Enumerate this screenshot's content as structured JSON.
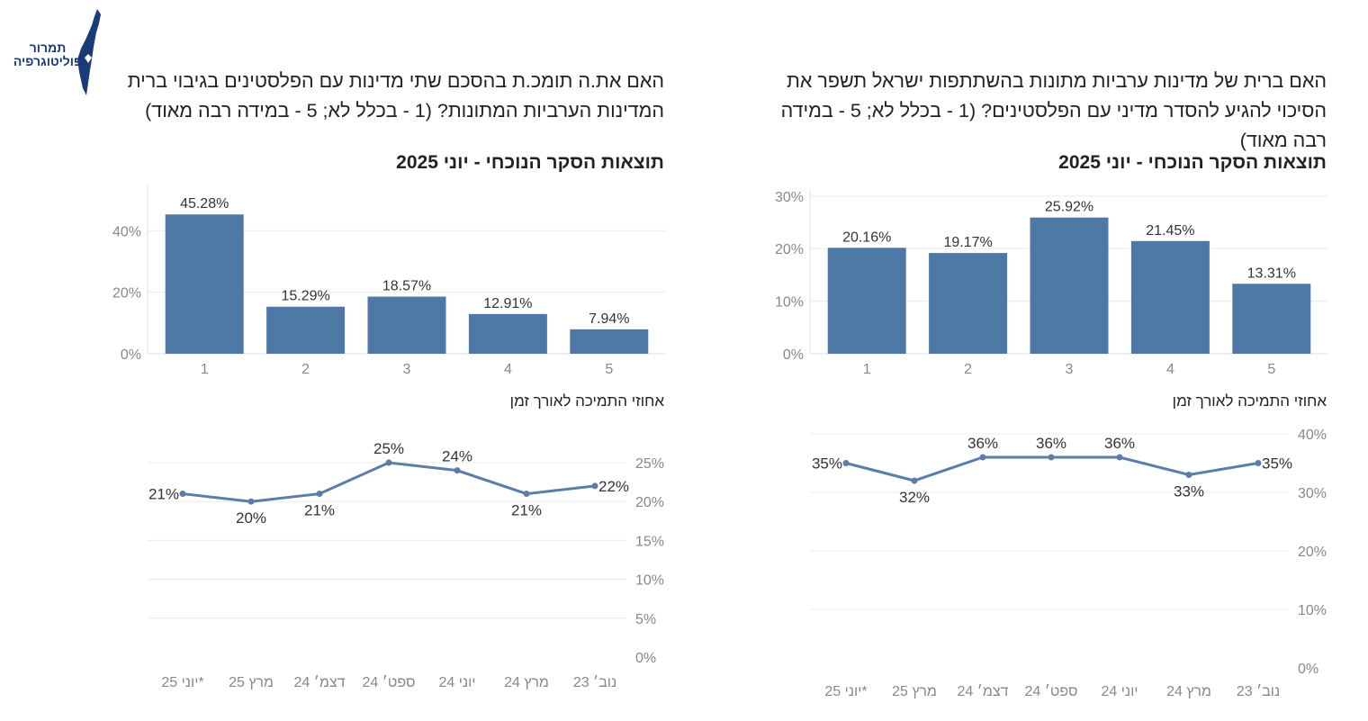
{
  "logo": {
    "line1": "תמרור",
    "line2": "פוליטוגרפיה"
  },
  "colors": {
    "bar": "#4e79a7",
    "line": "#5b7ea6",
    "grid": "#ececec",
    "axis_text": "#888888"
  },
  "panels": [
    {
      "question": "האם ברית של מדינות ערביות מתונות בהשתתפות ישראל תשפר את הסיכוי להגיע להסדר מדיני עם הפלסטינים? (1 - בכלל לא; 5 - במידה רבה מאוד)",
      "subtitle_prefix": "תוצאות הסקר הנוכחי - ",
      "subtitle_bold": "יוני",
      "subtitle_suffix": " 2025",
      "trend_title": "אחוזי התמיכה לאורך זמן"
    },
    {
      "question": "האם את.ה תומכ.ת בהסכם שתי מדינות עם הפלסטינים בגיבוי ברית המדינות הערביות המתונות? (1 - בכלל לא; 5 - במידה רבה מאוד)",
      "subtitle_prefix": "תוצאות הסקר הנוכחי - ",
      "subtitle_bold": "יוני",
      "subtitle_suffix": " 2025",
      "trend_title": "אחוזי התמיכה לאורך זמן"
    }
  ],
  "chart_data": [
    {
      "type": "bar",
      "categories": [
        "1",
        "2",
        "3",
        "4",
        "5"
      ],
      "values": [
        20.16,
        19.17,
        25.92,
        21.45,
        13.31
      ],
      "labels": [
        "20.16%",
        "19.17%",
        "25.92%",
        "21.45%",
        "13.31%"
      ],
      "ylim": [
        0,
        31
      ],
      "yticks": [
        0,
        10,
        20,
        30
      ],
      "ytick_labels": [
        "0%",
        "10%",
        "20%",
        "30%"
      ]
    },
    {
      "type": "line",
      "categories": [
        "*יוני 25",
        "מרץ 25",
        "דצמ׳ 24",
        "ספט׳ 24",
        "יוני 24",
        "מרץ 24",
        "נוב׳ 23"
      ],
      "values": [
        35,
        32,
        36,
        36,
        36,
        33,
        35
      ],
      "labels": [
        "35%",
        "32%",
        "36%",
        "36%",
        "36%",
        "33%",
        "35%"
      ],
      "label_pos": [
        "left",
        "below",
        "above",
        "above",
        "above",
        "below",
        "right"
      ],
      "ylim": [
        0,
        40
      ],
      "yticks": [
        0,
        10,
        20,
        30,
        40
      ],
      "ytick_labels": [
        "0%",
        "10%",
        "20%",
        "30%",
        "40%"
      ]
    },
    {
      "type": "bar",
      "categories": [
        "1",
        "2",
        "3",
        "4",
        "5"
      ],
      "values": [
        45.28,
        15.29,
        18.57,
        12.91,
        7.94
      ],
      "labels": [
        "45.28%",
        "15.29%",
        "18.57%",
        "12.91%",
        "7.94%"
      ],
      "ylim": [
        0,
        55
      ],
      "yticks": [
        0,
        20,
        40
      ],
      "ytick_labels": [
        "0%",
        "20%",
        "40%"
      ]
    },
    {
      "type": "line",
      "categories": [
        "*יוני 25",
        "מרץ 25",
        "דצמ׳ 24",
        "ספט׳ 24",
        "יוני 24",
        "מרץ 24",
        "נוב׳ 23"
      ],
      "values": [
        21,
        20,
        21,
        25,
        24,
        21,
        22
      ],
      "labels": [
        "21%",
        "20%",
        "21%",
        "25%",
        "24%",
        "21%",
        "22%"
      ],
      "label_pos": [
        "left",
        "below",
        "below",
        "above",
        "above",
        "below",
        "right"
      ],
      "ylim": [
        0,
        25
      ],
      "yticks": [
        0,
        5,
        10,
        15,
        20,
        25
      ],
      "ytick_labels": [
        "0%",
        "5%",
        "10%",
        "15%",
        "20%",
        "25%"
      ]
    }
  ]
}
